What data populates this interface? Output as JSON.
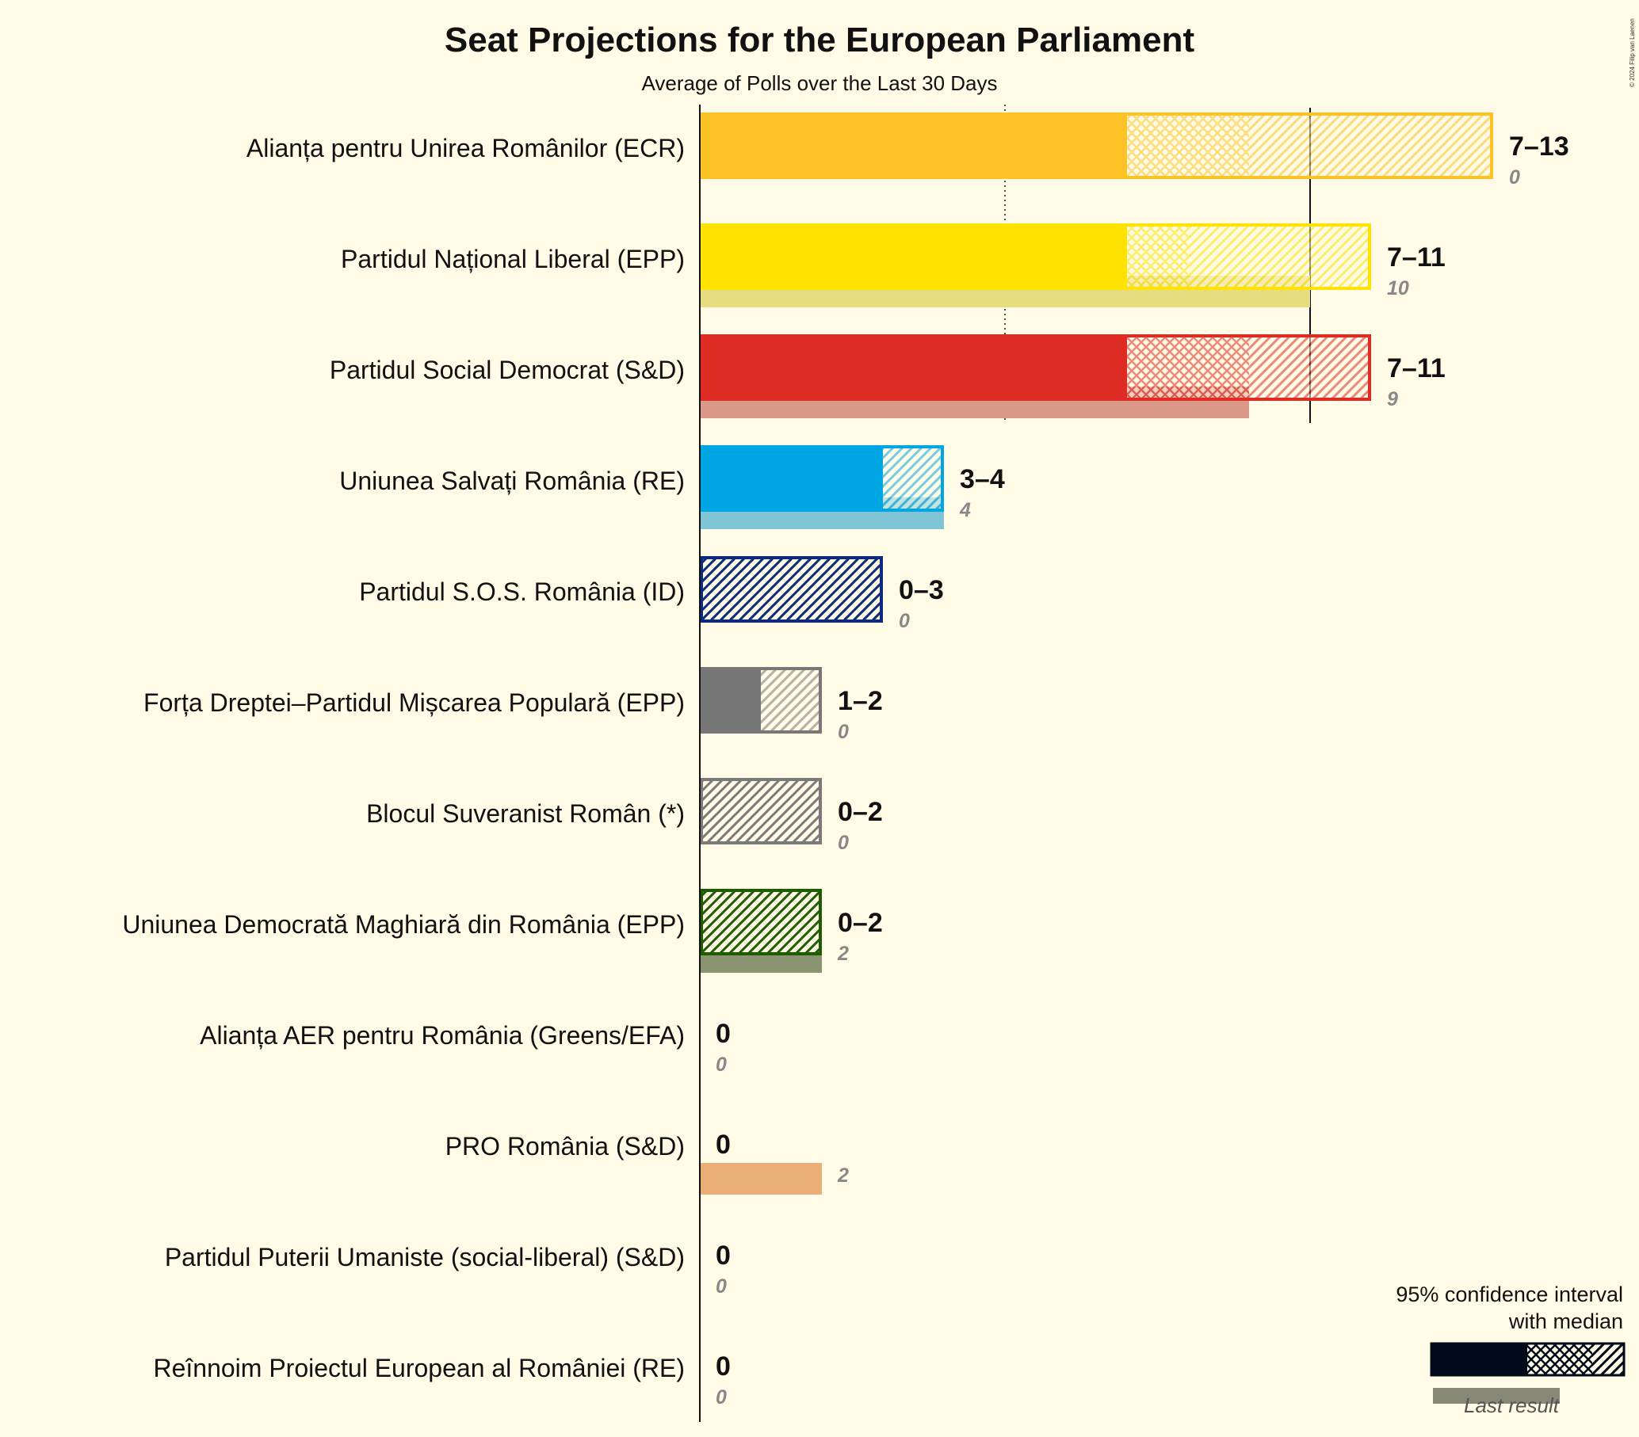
{
  "chart_data": {
    "type": "bar",
    "title": "Seat Projections for the European Parliament",
    "subtitle": "Average of Polls over the Last 30 Days",
    "copyright": "© 2024 Filip van Laenen",
    "xlim": [
      0,
      13
    ],
    "gridlines": [
      5,
      10
    ],
    "parties": [
      {
        "name": "Alianța pentru Unirea Românilor (ECR)",
        "low": 7,
        "q_low": 7,
        "median": 9,
        "high": 13,
        "last": 0,
        "range_label": "7–13",
        "last_label": "0",
        "color": "#fcc226",
        "last_color": "#ead27a"
      },
      {
        "name": "Partidul Național Liberal (EPP)",
        "low": 7,
        "q_low": 7,
        "median": 8,
        "high": 11,
        "last": 10,
        "range_label": "7–11",
        "last_label": "10",
        "color": "#ffe200",
        "last_color": "#e8dc80"
      },
      {
        "name": "Partidul Social Democrat (S&D)",
        "low": 7,
        "q_low": 7,
        "median": 9,
        "high": 11,
        "last": 9,
        "range_label": "7–11",
        "last_label": "9",
        "color": "#de2c24",
        "last_color": "#dc998a"
      },
      {
        "name": "Uniunea Salvați România (RE)",
        "low": 3,
        "q_low": 3,
        "median": 3,
        "high": 4,
        "last": 4,
        "range_label": "3–4",
        "last_label": "4",
        "color": "#00a6e3",
        "last_color": "#7fc5d5"
      },
      {
        "name": "Partidul S.O.S. România (ID)",
        "low": 0,
        "q_low": 0,
        "median": 0,
        "high": 3,
        "last": 0,
        "range_label": "0–3",
        "last_label": "0",
        "color": "#0c2a7e",
        "last_color": "#8899bb"
      },
      {
        "name": "Forța Dreptei–Partidul Mișcarea Populară (EPP)",
        "low": 1,
        "q_low": 1,
        "median": 1,
        "high": 2,
        "last": 0,
        "range_label": "1–2",
        "last_label": "0",
        "color": "#777777",
        "last_color": "#bbbbbb"
      },
      {
        "name": "Blocul Suveranist Român (*)",
        "low": 0,
        "q_low": 0,
        "median": 0,
        "high": 2,
        "last": 0,
        "range_label": "0–2",
        "last_label": "0",
        "color": "#7a7a7a",
        "last_color": "#bbbbbb"
      },
      {
        "name": "Uniunea Democrată Maghiară din România (EPP)",
        "low": 0,
        "q_low": 0,
        "median": 0,
        "high": 2,
        "last": 2,
        "range_label": "0–2",
        "last_label": "2",
        "color": "#1f5b00",
        "last_color": "#8a9470"
      },
      {
        "name": "Alianța AER pentru România (Greens/EFA)",
        "low": 0,
        "q_low": 0,
        "median": 0,
        "high": 0,
        "last": 0,
        "range_label": "0",
        "last_label": "0",
        "color": "#4a9a4a",
        "last_color": "#bbbbbb"
      },
      {
        "name": "PRO România (S&D)",
        "low": 0,
        "q_low": 0,
        "median": 0,
        "high": 0,
        "last": 2,
        "range_label": "0",
        "last_label": "2",
        "color": "#e8923a",
        "last_color": "#ebae76"
      },
      {
        "name": "Partidul Puterii Umaniste (social-liberal) (S&D)",
        "low": 0,
        "q_low": 0,
        "median": 0,
        "high": 0,
        "last": 0,
        "range_label": "0",
        "last_label": "0",
        "color": "#a33",
        "last_color": "#bbbbbb"
      },
      {
        "name": "Reînnoim Proiectul European al României (RE)",
        "low": 0,
        "q_low": 0,
        "median": 0,
        "high": 0,
        "last": 0,
        "range_label": "0",
        "last_label": "0",
        "color": "#5ab",
        "last_color": "#bbbbbb"
      }
    ],
    "legend": {
      "line1": "95% confidence interval",
      "line2": "with median",
      "last_result": "Last result",
      "placement": "bottom-right"
    }
  }
}
